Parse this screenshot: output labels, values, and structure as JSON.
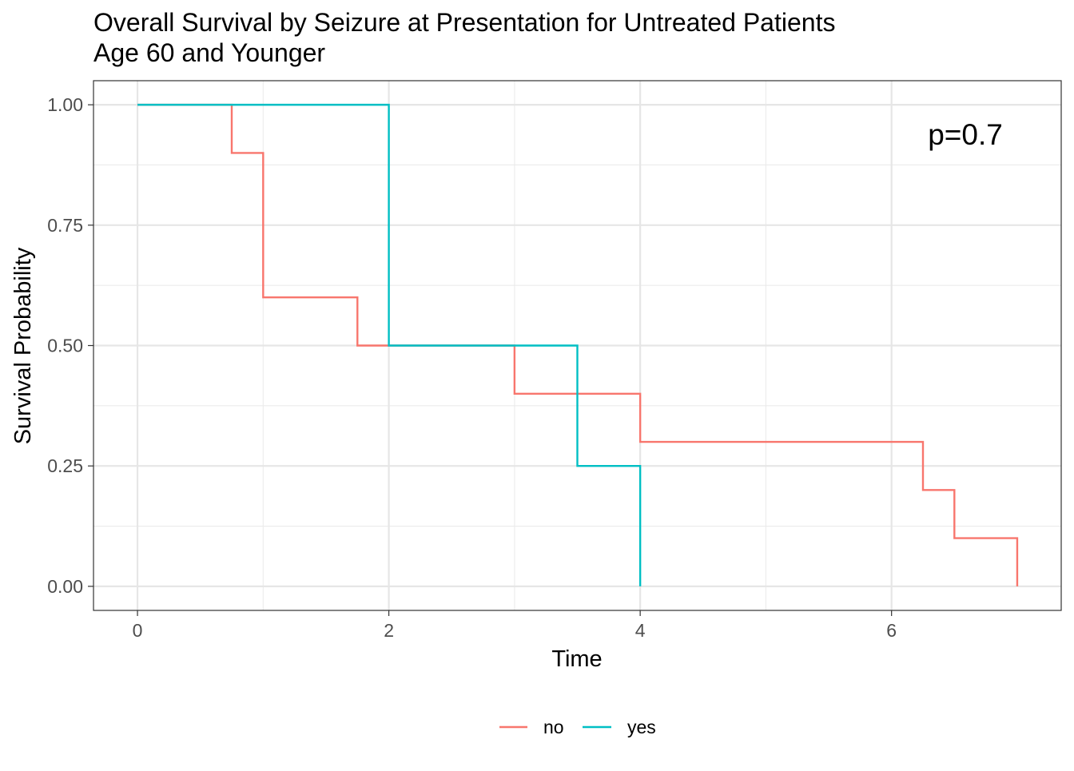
{
  "chart_data": {
    "type": "line",
    "subtype": "kaplan-meier step",
    "title": "Overall Survival by Seizure at Presentation for Untreated Patients",
    "subtitle": "Age 60 and Younger",
    "xlabel": "Time",
    "ylabel": "Survival Probability",
    "xlim": [
      -0.35,
      7.35
    ],
    "ylim": [
      -0.05,
      1.05
    ],
    "x_ticks": [
      0,
      2,
      4,
      6
    ],
    "x_tick_labels": [
      "0",
      "2",
      "4",
      "6"
    ],
    "y_ticks": [
      0,
      0.25,
      0.5,
      0.75,
      1
    ],
    "y_tick_labels": [
      "0.00",
      "0.25",
      "0.50",
      "0.75",
      "1.00"
    ],
    "grid": true,
    "legend_position": "bottom",
    "annotation": "p=0.7",
    "series": [
      {
        "name": "no",
        "color": "#F8766D",
        "x": [
          0,
          0.75,
          1,
          1.75,
          2,
          3,
          4,
          6.25,
          6.5,
          7
        ],
        "y": [
          1,
          0.9,
          0.6,
          0.5,
          0.5,
          0.4,
          0.3,
          0.2,
          0.1,
          0
        ]
      },
      {
        "name": "yes",
        "color": "#00BFC4",
        "x": [
          0,
          2,
          3.5,
          4
        ],
        "y": [
          1,
          0.5,
          0.25,
          0
        ]
      }
    ]
  }
}
